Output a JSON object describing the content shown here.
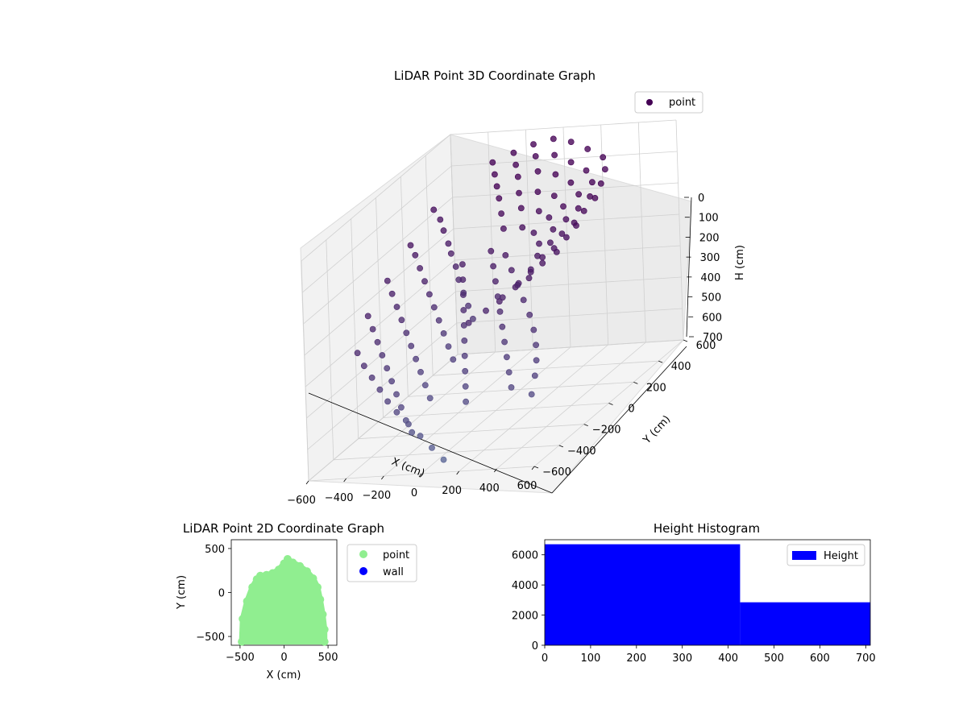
{
  "colors": {
    "point3d_far": "#440154",
    "point3d_near": "#5b6b9a",
    "point2d": "#90ee90",
    "wall": "#0000ff",
    "hist_bar": "#0000ff"
  },
  "chart_data": [
    {
      "type": "scatter",
      "projection": "3d",
      "title": "LiDAR Point 3D Coordinate Graph",
      "xlabel": "X (cm)",
      "ylabel": "Y (cm)",
      "zlabel": "H (cm)",
      "xlim": [
        -600,
        600
      ],
      "ylim": [
        -600,
        600
      ],
      "zlim": [
        700,
        0
      ],
      "xticks": [
        -600,
        -400,
        -200,
        0,
        200,
        400,
        600
      ],
      "yticks": [
        -600,
        -400,
        -200,
        0,
        200,
        400,
        600
      ],
      "zticks": [
        0,
        100,
        200,
        300,
        400,
        500,
        600,
        700
      ],
      "legend": [
        "point"
      ],
      "legend_loc": "upper-right",
      "grid": true,
      "series": [
        {
          "name": "point",
          "shape_note_free": true,
          "points": [
            [
              -580,
              420,
              180
            ],
            [
              -520,
              380,
              200
            ],
            [
              -470,
              330,
              220
            ],
            [
              -420,
              290,
              250
            ],
            [
              -380,
              250,
              270
            ],
            [
              -330,
              210,
              300
            ],
            [
              -290,
              170,
              330
            ],
            [
              -240,
              130,
              360
            ],
            [
              -190,
              90,
              390
            ],
            [
              -140,
              50,
              420
            ],
            [
              -560,
              200,
              220
            ],
            [
              -510,
              160,
              240
            ],
            [
              -460,
              120,
              270
            ],
            [
              -410,
              80,
              300
            ],
            [
              -360,
              40,
              330
            ],
            [
              -310,
              0,
              360
            ],
            [
              -260,
              -40,
              390
            ],
            [
              -210,
              -80,
              420
            ],
            [
              -160,
              -120,
              450
            ],
            [
              -110,
              -160,
              480
            ],
            [
              -540,
              -20,
              260
            ],
            [
              -490,
              -60,
              290
            ],
            [
              -440,
              -100,
              320
            ],
            [
              -390,
              -140,
              350
            ],
            [
              -340,
              -180,
              380
            ],
            [
              -290,
              -220,
              410
            ],
            [
              -240,
              -260,
              440
            ],
            [
              -190,
              -300,
              470
            ],
            [
              -140,
              -340,
              500
            ],
            [
              -90,
              -380,
              530
            ],
            [
              -500,
              -240,
              300
            ],
            [
              -450,
              -280,
              330
            ],
            [
              -400,
              -320,
              360
            ],
            [
              -350,
              -360,
              390
            ],
            [
              -300,
              -400,
              420
            ],
            [
              -250,
              -440,
              450
            ],
            [
              -200,
              -480,
              480
            ],
            [
              -150,
              -520,
              510
            ],
            [
              -100,
              -560,
              540
            ],
            [
              -50,
              -590,
              570
            ],
            [
              -420,
              -450,
              350
            ],
            [
              -360,
              -490,
              380
            ],
            [
              -300,
              -520,
              410
            ],
            [
              -240,
              -550,
              440
            ],
            [
              -180,
              -580,
              470
            ],
            [
              -120,
              -600,
              500
            ],
            [
              -60,
              -600,
              540
            ],
            [
              0,
              -600,
              580
            ],
            [
              60,
              -600,
              620
            ],
            [
              120,
              -600,
              660
            ],
            [
              -300,
              480,
              60
            ],
            [
              -200,
              500,
              40
            ],
            [
              -100,
              510,
              20
            ],
            [
              0,
              520,
              10
            ],
            [
              100,
              510,
              20
            ],
            [
              200,
              490,
              40
            ],
            [
              300,
              460,
              60
            ],
            [
              350,
              400,
              80
            ],
            [
              380,
              320,
              100
            ],
            [
              400,
              240,
              120
            ],
            [
              -250,
              420,
              80
            ],
            [
              -150,
              440,
              60
            ],
            [
              -50,
              450,
              40
            ],
            [
              50,
              450,
              40
            ],
            [
              150,
              430,
              60
            ],
            [
              250,
              400,
              80
            ],
            [
              320,
              340,
              100
            ],
            [
              360,
              260,
              120
            ],
            [
              380,
              180,
              140
            ],
            [
              390,
              100,
              160
            ],
            [
              -200,
              360,
              100
            ],
            [
              -100,
              380,
              80
            ],
            [
              0,
              390,
              70
            ],
            [
              100,
              380,
              80
            ],
            [
              200,
              350,
              100
            ],
            [
              280,
              290,
              120
            ],
            [
              330,
              210,
              140
            ],
            [
              360,
              130,
              160
            ],
            [
              370,
              50,
              180
            ],
            [
              370,
              -30,
              200
            ],
            [
              -150,
              300,
              120
            ],
            [
              -50,
              310,
              110
            ],
            [
              50,
              310,
              110
            ],
            [
              150,
              290,
              120
            ],
            [
              230,
              240,
              140
            ],
            [
              290,
              170,
              160
            ],
            [
              320,
              90,
              180
            ],
            [
              330,
              10,
              200
            ],
            [
              320,
              -70,
              220
            ],
            [
              300,
              -150,
              240
            ],
            [
              -100,
              240,
              150
            ],
            [
              0,
              250,
              140
            ],
            [
              100,
              240,
              150
            ],
            [
              180,
              200,
              160
            ],
            [
              240,
              140,
              180
            ],
            [
              270,
              70,
              200
            ],
            [
              280,
              -10,
              220
            ],
            [
              270,
              -90,
              240
            ],
            [
              240,
              -170,
              260
            ],
            [
              200,
              -240,
              280
            ],
            [
              -50,
              180,
              180
            ],
            [
              50,
              180,
              180
            ],
            [
              130,
              150,
              190
            ],
            [
              190,
              100,
              210
            ],
            [
              220,
              40,
              230
            ],
            [
              230,
              -30,
              250
            ],
            [
              210,
              -100,
              270
            ],
            [
              170,
              -170,
              290
            ],
            [
              120,
              -230,
              310
            ],
            [
              60,
              -280,
              330
            ],
            [
              -220,
              100,
              260
            ],
            [
              -180,
              40,
              290
            ],
            [
              -140,
              -20,
              320
            ],
            [
              -100,
              -80,
              350
            ],
            [
              -60,
              -140,
              380
            ],
            [
              -20,
              -200,
              410
            ],
            [
              20,
              -260,
              440
            ],
            [
              60,
              -320,
              470
            ],
            [
              100,
              -380,
              500
            ],
            [
              140,
              -440,
              530
            ],
            [
              -80,
              120,
              230
            ],
            [
              -30,
              60,
              260
            ],
            [
              20,
              0,
              290
            ],
            [
              70,
              -60,
              320
            ],
            [
              120,
              -120,
              350
            ],
            [
              170,
              -180,
              380
            ],
            [
              220,
              -240,
              410
            ],
            [
              270,
              -300,
              440
            ],
            [
              320,
              -360,
              470
            ],
            [
              370,
              -420,
              500
            ],
            [
              10,
              100,
              240
            ],
            [
              80,
              40,
              270
            ],
            [
              150,
              -20,
              300
            ],
            [
              220,
              -80,
              330
            ],
            [
              290,
              -140,
              360
            ],
            [
              350,
              -200,
              390
            ],
            [
              400,
              -260,
              420
            ],
            [
              440,
              -320,
              450
            ],
            [
              470,
              -380,
              480
            ],
            [
              490,
              -440,
              520
            ]
          ]
        }
      ]
    },
    {
      "type": "scatter",
      "title": "LiDAR Point 2D Coordinate Graph",
      "xlabel": "X (cm)",
      "ylabel": "Y (cm)",
      "xlim": [
        -600,
        600
      ],
      "ylim": [
        -600,
        600
      ],
      "xticks": [
        -500,
        0,
        500
      ],
      "yticks": [
        -500,
        0,
        500
      ],
      "legend": [
        "point",
        "wall"
      ],
      "legend_loc": "outside-right",
      "series": [
        {
          "name": "point",
          "outline": [
            [
              -480,
              -560
            ],
            [
              -470,
              -300
            ],
            [
              -420,
              -100
            ],
            [
              -360,
              60
            ],
            [
              -310,
              150
            ],
            [
              -270,
              190
            ],
            [
              -200,
              200
            ],
            [
              -130,
              220
            ],
            [
              -60,
              260
            ],
            [
              0,
              330
            ],
            [
              40,
              380
            ],
            [
              100,
              340
            ],
            [
              180,
              300
            ],
            [
              260,
              240
            ],
            [
              330,
              160
            ],
            [
              380,
              60
            ],
            [
              410,
              -80
            ],
            [
              440,
              -250
            ],
            [
              460,
              -420
            ],
            [
              460,
              -560
            ]
          ]
        },
        {
          "name": "wall",
          "points": []
        }
      ]
    },
    {
      "type": "bar",
      "histogram": true,
      "title": "Height Histogram",
      "xlim": [
        0,
        710
      ],
      "ylim": [
        0,
        7000
      ],
      "xticks": [
        0,
        100,
        200,
        300,
        400,
        500,
        600,
        700
      ],
      "yticks": [
        0,
        2000,
        4000,
        6000
      ],
      "legend": [
        "Height"
      ],
      "legend_loc": "upper-right",
      "series": [
        {
          "name": "Height",
          "bins": [
            {
              "from": 0,
              "to": 426,
              "count": 6700
            },
            {
              "from": 426,
              "to": 710,
              "count": 2850
            }
          ]
        }
      ]
    }
  ]
}
